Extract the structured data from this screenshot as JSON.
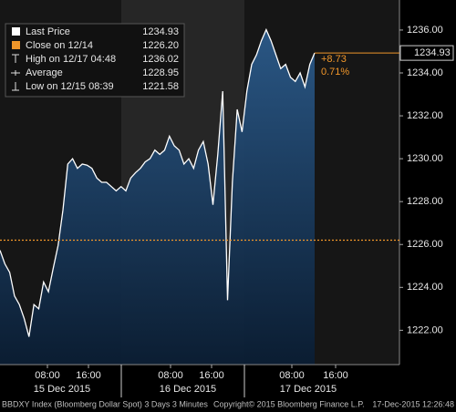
{
  "chart_data": {
    "type": "line",
    "series": [
      {
        "name": "Last Price",
        "color": "#ffffff",
        "values": [
          1225.73,
          1225.1,
          1224.7,
          1223.6,
          1223.2,
          1222.55,
          1221.7,
          1223.2,
          1223.0,
          1224.25,
          1223.8,
          1224.9,
          1225.95,
          1227.6,
          1229.75,
          1230.0,
          1229.55,
          1229.75,
          1229.7,
          1229.55,
          1229.1,
          1228.9,
          1228.9,
          1228.7,
          1228.5,
          1228.7,
          1228.5,
          1229.1,
          1229.35,
          1229.55,
          1229.85,
          1230.0,
          1230.4,
          1230.2,
          1230.4,
          1231.05,
          1230.6,
          1230.4,
          1229.75,
          1230.0,
          1229.55,
          1230.4,
          1230.8,
          1229.75,
          1227.85,
          1230.2,
          1233.15,
          1223.4,
          1228.9,
          1232.3,
          1231.25,
          1233.15,
          1234.4,
          1234.85,
          1235.5,
          1236.02,
          1235.5,
          1234.85,
          1234.2,
          1234.4,
          1233.8,
          1233.6,
          1234.0,
          1233.35,
          1234.4,
          1234.93
        ]
      }
    ],
    "legend": [
      {
        "label": "Last Price",
        "value": 1234.93
      },
      {
        "label": "Close on 12/14",
        "value": 1226.2,
        "value_label": "1226.20"
      },
      {
        "label": "High on 12/17 04:48",
        "value": 1236.02
      },
      {
        "label": "Average",
        "value": 1228.95
      },
      {
        "label": "Low on 12/15 08:39",
        "value": 1221.58
      }
    ],
    "change_labels": [
      "+8.73",
      "0.71%"
    ],
    "ylim": [
      1220.4,
      1237.4
    ],
    "yticks": [
      {
        "value": 1222,
        "label": "1222.00"
      },
      {
        "value": 1224,
        "label": "1224.00"
      },
      {
        "value": 1226,
        "label": "1226.00"
      },
      {
        "value": 1228,
        "label": "1228.00"
      },
      {
        "value": 1230,
        "label": "1230.00"
      },
      {
        "value": 1232,
        "label": "1232.00"
      },
      {
        "value": 1234,
        "label": "1234.00"
      },
      {
        "value": 1236,
        "label": "1236.00"
      }
    ],
    "x_tick_labels": [
      "08:00",
      "16:00",
      "08:00",
      "16:00",
      "08:00",
      "16:00"
    ],
    "day_labels": [
      "15 Dec 2015",
      "16 Dec 2015",
      "17 Dec 2015"
    ],
    "footer": {
      "left": "BBDXY Index (Bloomberg Dollar Spot) 3 Days 3 Minutes",
      "center": "Copyright© 2015 Bloomberg Finance L.P.",
      "right": "17-Dec-2015 12:26:48"
    },
    "close_color": "#f0962a",
    "fill_color": "#2b5a8a"
  }
}
